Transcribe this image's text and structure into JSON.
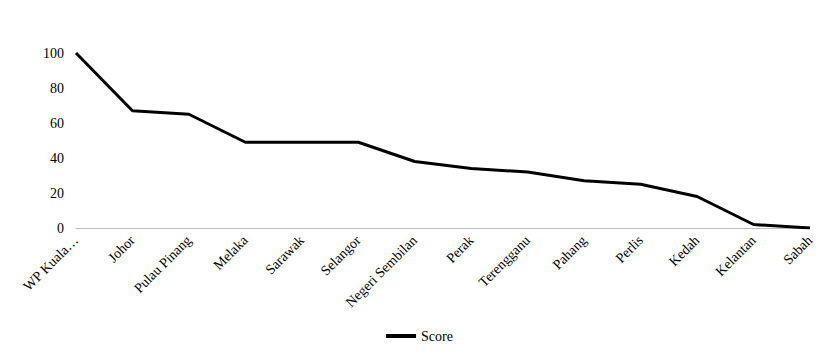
{
  "chart_data": {
    "type": "line",
    "categories": [
      "WP Kuala…",
      "Johor",
      "Pulau Pinang",
      "Melaka",
      "Sarawak",
      "Selangor",
      "Negeri Sembilan",
      "Perak",
      "Terengganu",
      "Pahang",
      "Perlis",
      "Kedah",
      "Kelantan",
      "Sabah"
    ],
    "series": [
      {
        "name": "Score",
        "color": "#000000",
        "values": [
          100,
          67,
          65,
          49,
          49,
          49,
          38,
          34,
          32,
          27,
          25,
          18,
          2,
          0
        ]
      }
    ],
    "ylim": [
      0,
      100
    ],
    "yticks": [
      0,
      20,
      40,
      60,
      80,
      100
    ],
    "grid": false,
    "legend": "bottom"
  }
}
